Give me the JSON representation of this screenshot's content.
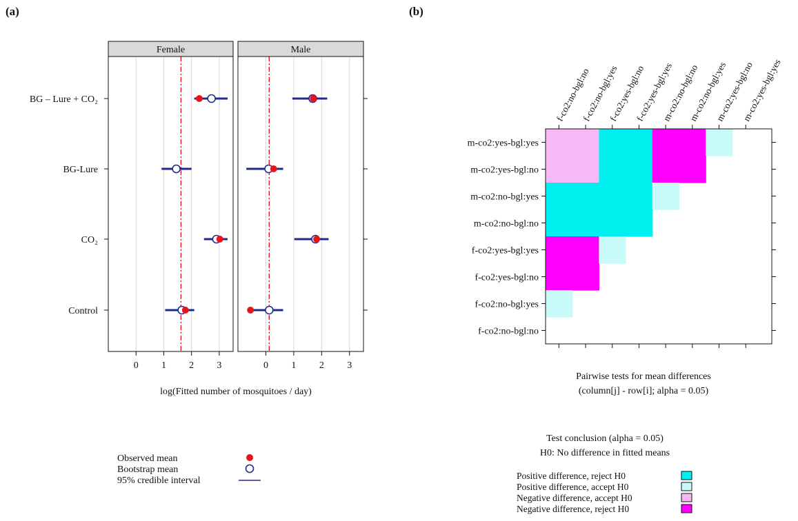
{
  "panels": {
    "a_label": "(a)",
    "b_label": "(b)"
  },
  "colors": {
    "observed": "#e8141b",
    "bootstrap": "#1f2a8c",
    "interval": "#1f2a8c",
    "refline": "#e8141b",
    "grid": "#d8d8d8",
    "strip": "#d9d9d9",
    "pos_reject": "#00f0f0",
    "pos_accept": "#c8fafa",
    "neg_accept": "#f8b8f8",
    "neg_reject": "#ff00ff"
  },
  "chart_data": [
    {
      "type": "dot-interval",
      "panel": "(a)",
      "facets": [
        "Female",
        "Male"
      ],
      "categories": [
        "BG – Lure + CO₂",
        "BG-Lure",
        "CO₂",
        "Control"
      ],
      "xlabel": "log(Fitted number of mosquitoes / day)",
      "xticks": [
        0,
        1,
        2,
        3
      ],
      "xlim": [
        -1,
        3.5
      ],
      "reference_line": {
        "Female": 1.62,
        "Male": 0.12
      },
      "series": [
        {
          "facet": "Female",
          "category": "BG – Lure + CO₂",
          "observed": 2.28,
          "bootstrap": 2.72,
          "lower": 2.1,
          "upper": 3.3
        },
        {
          "facet": "Female",
          "category": "BG-Lure",
          "observed": 1.42,
          "bootstrap": 1.45,
          "lower": 0.92,
          "upper": 2.0
        },
        {
          "facet": "Female",
          "category": "CO₂",
          "observed": 3.02,
          "bootstrap": 2.9,
          "lower": 2.45,
          "upper": 3.3
        },
        {
          "facet": "Female",
          "category": "Control",
          "observed": 1.78,
          "bootstrap": 1.65,
          "lower": 1.05,
          "upper": 2.1
        },
        {
          "facet": "Male",
          "category": "BG – Lure + CO₂",
          "observed": 1.7,
          "bootstrap": 1.68,
          "lower": 0.95,
          "upper": 2.2
        },
        {
          "facet": "Male",
          "category": "BG-Lure",
          "observed": 0.28,
          "bootstrap": 0.1,
          "lower": -0.7,
          "upper": 0.62
        },
        {
          "facet": "Male",
          "category": "CO₂",
          "observed": 1.82,
          "bootstrap": 1.78,
          "lower": 1.02,
          "upper": 2.25
        },
        {
          "facet": "Male",
          "category": "Control",
          "observed": -0.55,
          "bootstrap": 0.12,
          "lower": -0.6,
          "upper": 0.62
        }
      ],
      "legend": {
        "observed": "Observed mean",
        "bootstrap": "Bootstrap mean",
        "interval": "95% credible interval"
      }
    },
    {
      "type": "heatmap",
      "panel": "(b)",
      "columns": [
        "f-co2:no-bgl:no",
        "f-co2:no-bgl:yes",
        "f-co2:yes-bgl:no",
        "f-co2:yes-bgl:yes",
        "m-co2:no-bgl:no",
        "m-co2:no-bgl:yes",
        "m-co2:yes-bgl:no",
        "m-co2:yes-bgl:yes"
      ],
      "rows": [
        "m-co2:yes-bgl:yes",
        "m-co2:yes-bgl:no",
        "m-co2:no-bgl:yes",
        "m-co2:no-bgl:no",
        "f-co2:yes-bgl:yes",
        "f-co2:yes-bgl:no",
        "f-co2:no-bgl:yes",
        "f-co2:no-bgl:no"
      ],
      "cells": [
        [
          "NA",
          "NA",
          "PR",
          "PR",
          "NR",
          "NR",
          "PA",
          ""
        ],
        [
          "NA",
          "NA",
          "PR",
          "PR",
          "NR",
          "NR",
          "",
          ""
        ],
        [
          "PR",
          "PR",
          "PR",
          "PR",
          "PA",
          "",
          "",
          ""
        ],
        [
          "PR",
          "PR",
          "PR",
          "PR",
          "",
          "",
          "",
          ""
        ],
        [
          "NR",
          "NR",
          "PA",
          "",
          "",
          "",
          "",
          ""
        ],
        [
          "NR",
          "NR",
          "",
          "",
          "",
          "",
          "",
          ""
        ],
        [
          "PA",
          "",
          "",
          "",
          "",
          "",
          "",
          ""
        ],
        [
          "",
          "",
          "",
          "",
          "",
          "",
          "",
          ""
        ]
      ],
      "xlabel_line1": "Pairwise tests for mean differences",
      "xlabel_line2": "(column[j] - row[i]; alpha = 0.05)",
      "legend_title_line1": "Test conclusion (alpha = 0.05)",
      "legend_title_line2": "H0: No difference in fitted means",
      "legend": [
        {
          "code": "PR",
          "label": "Positive difference, reject H0"
        },
        {
          "code": "PA",
          "label": "Positive difference, accept H0"
        },
        {
          "code": "NA",
          "label": "Negative difference, accept H0"
        },
        {
          "code": "NR",
          "label": "Negative difference, reject H0"
        }
      ]
    }
  ]
}
